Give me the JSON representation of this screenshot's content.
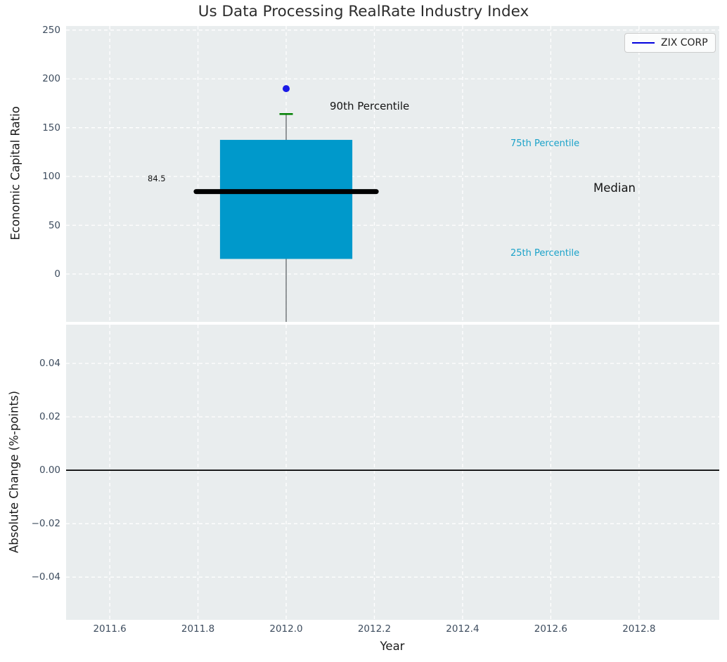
{
  "title": "Us Data Processing RealRate Industry Index",
  "legend": {
    "label": "ZIX CORP"
  },
  "annotations": {
    "p90_label": "90th Percentile",
    "p75_label": "75th Percentile",
    "median_label": "Median",
    "p25_label": "25th Percentile",
    "median_value_label": "84.5"
  },
  "top_panel": {
    "ylabel": "Economic Capital Ratio"
  },
  "bottom_panel": {
    "ylabel": "Absolute Change (%-points)"
  },
  "xlabel": "Year",
  "colors": {
    "axes_bg": "#e9edee",
    "grid": "#ffffff",
    "tick_text": "#3d4c5e",
    "box_fill": "#0099cb",
    "median_line": "#000000",
    "p90_cap": "#008000",
    "whisker": "#555a5e",
    "company_dot": "#1a1ae6",
    "legend_line": "#0000dd",
    "percentile_text": "#1ba2c9",
    "zero_line": "#000000"
  },
  "chart_data": {
    "type": "box",
    "title": "Us Data Processing RealRate Industry Index",
    "xlabel": "Year",
    "xlim": [
      2011.501,
      2012.982
    ],
    "xticks": [
      {
        "v": 2011.6,
        "label": "2011.6"
      },
      {
        "v": 2011.8,
        "label": "2011.8"
      },
      {
        "v": 2012.0,
        "label": "2012.0"
      },
      {
        "v": 2012.2,
        "label": "2012.2"
      },
      {
        "v": 2012.4,
        "label": "2012.4"
      },
      {
        "v": 2012.6,
        "label": "2012.6"
      },
      {
        "v": 2012.8,
        "label": "2012.8"
      }
    ],
    "grid": "dashed-white",
    "legend_position": "upper-right",
    "panels": [
      {
        "name": "economic-capital-ratio",
        "ylabel": "Economic Capital Ratio",
        "ylim": [
          -49,
          254.2
        ],
        "yticks": [
          {
            "v": 0,
            "label": "0"
          },
          {
            "v": 50,
            "label": "50"
          },
          {
            "v": 100,
            "label": "100"
          },
          {
            "v": 150,
            "label": "150"
          },
          {
            "v": 200,
            "label": "200"
          },
          {
            "v": 250,
            "label": "250"
          }
        ],
        "series": [
          {
            "name": "ZIX CORP",
            "x": 2012.0,
            "p25": 15.5,
            "median": 84.5,
            "p75": 137.5,
            "p90": 164,
            "company_value": 190,
            "median_value_label": "84.5",
            "whisker_low_clipped_below_axis": true,
            "box_half_width_years": 0.15
          }
        ]
      },
      {
        "name": "absolute-change",
        "ylabel": "Absolute Change (%-points)",
        "ylim": [
          -0.056,
          0.0545
        ],
        "yticks": [
          {
            "v": 0.04,
            "label": "0.04"
          },
          {
            "v": 0.02,
            "label": "0.02"
          },
          {
            "v": 0.0,
            "label": "0.00"
          },
          {
            "v": -0.02,
            "label": "−0.02"
          },
          {
            "v": -0.04,
            "label": "−0.04"
          }
        ],
        "zero_line": 0.0
      }
    ]
  }
}
